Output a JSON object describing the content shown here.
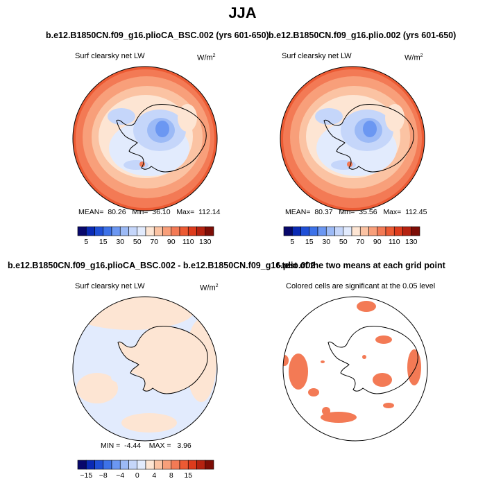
{
  "title": "JJA",
  "panels": {
    "top_left": {
      "title": "b.e12.B1850CN.f09_g16.plioCA_BSC.002 (yrs 601-650)",
      "subtitle": "Surf clearsky net LW",
      "units": "W/m",
      "units_sup": "2",
      "stats": {
        "mean_label": "MEAN=",
        "mean": "80.26",
        "min_label": "Min=",
        "min": "36.10",
        "max_label": "Max=",
        "max": "112.14"
      }
    },
    "top_right": {
      "title": "b.e12.B1850CN.f09_g16.plio.002 (yrs 601-650)",
      "subtitle": "Surf clearsky net LW",
      "units": "W/m",
      "units_sup": "2",
      "stats": {
        "mean_label": "MEAN=",
        "mean": "80.37",
        "min_label": "Min=",
        "min": "35.56",
        "max_label": "Max=",
        "max": "112.45"
      }
    },
    "bottom_left": {
      "title": "b.e12.B1850CN.f09_g16.plioCA_BSC.002 - b.e12.B1850CN.f09_g16.plio.002",
      "subtitle": "Surf clearsky net LW",
      "units": "W/m",
      "units_sup": "2",
      "stats": {
        "min_label": "MIN =",
        "min": "-4.44",
        "max_label": "MAX =",
        "max": "3.96"
      }
    },
    "bottom_right": {
      "title": "t-test of the two means at each grid point",
      "subtitle": "Colored cells are significant at the 0.05 level"
    }
  },
  "colorbars": {
    "abs": {
      "labels": [
        "5",
        "15",
        "30",
        "50",
        "70",
        "90",
        "110",
        "130"
      ],
      "colors": [
        "#08086b",
        "#0a2ab4",
        "#1f4fd6",
        "#3d72e8",
        "#6b97f2",
        "#9cbaf6",
        "#c5d6fa",
        "#e2ebfd",
        "#fde5d3",
        "#fbc3a3",
        "#f89f7a",
        "#f37a55",
        "#ec5a33",
        "#dd3b1c",
        "#b52210",
        "#7d0d06"
      ]
    },
    "diff": {
      "labels": [
        "−15",
        "−8",
        "−4",
        "0",
        "4",
        "8",
        "15"
      ],
      "colors": [
        "#08086b",
        "#0a2ab4",
        "#1f4fd6",
        "#3d72e8",
        "#6b97f2",
        "#9cbaf6",
        "#c5d6fa",
        "#e2ebfd",
        "#fde5d3",
        "#fbc3a3",
        "#f89f7a",
        "#f37a55",
        "#ec5a33",
        "#dd3b1c",
        "#b52210",
        "#7d0d06"
      ]
    }
  },
  "chart_data": [
    {
      "type": "heatmap",
      "projection": "polar stereographic (south)",
      "title": "b.e12.B1850CN.f09_g16.plioCA_BSC.002 (yrs 601-650)",
      "variable": "Surf clearsky net LW",
      "units": "W/m2",
      "season": "JJA",
      "mean": 80.26,
      "min": 36.1,
      "max": 112.14,
      "contour_levels": [
        5,
        15,
        30,
        50,
        70,
        90,
        110,
        130
      ]
    },
    {
      "type": "heatmap",
      "projection": "polar stereographic (south)",
      "title": "b.e12.B1850CN.f09_g16.plio.002 (yrs 601-650)",
      "variable": "Surf clearsky net LW",
      "units": "W/m2",
      "season": "JJA",
      "mean": 80.37,
      "min": 35.56,
      "max": 112.45,
      "contour_levels": [
        5,
        15,
        30,
        50,
        70,
        90,
        110,
        130
      ]
    },
    {
      "type": "heatmap",
      "projection": "polar stereographic (south)",
      "title": "b.e12.B1850CN.f09_g16.plioCA_BSC.002 - b.e12.B1850CN.f09_g16.plio.002",
      "variable": "Surf clearsky net LW",
      "units": "W/m2",
      "season": "JJA",
      "min": -4.44,
      "max": 3.96,
      "contour_levels": [
        -15,
        -8,
        -4,
        0,
        4,
        8,
        15
      ]
    },
    {
      "type": "heatmap",
      "projection": "polar stereographic (south)",
      "title": "t-test of the two means at each grid point",
      "note": "Colored cells are significant at the 0.05 level",
      "significance_level": 0.05
    }
  ]
}
